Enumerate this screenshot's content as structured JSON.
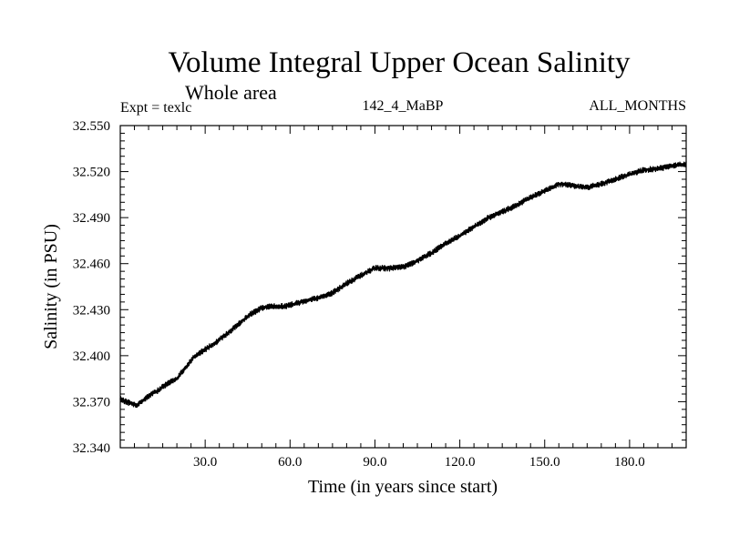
{
  "chart_data": {
    "type": "line",
    "title": "Volume Integral Upper Ocean Salinity",
    "subtitle": "Whole area",
    "annotations": {
      "left": "Expt = texlc",
      "center": "142_4_MaBP",
      "right": "ALL_MONTHS"
    },
    "xlabel": "Time (in years since start)",
    "ylabel": "Salinity (in PSU)",
    "xlim": [
      0,
      200
    ],
    "ylim": [
      32.34,
      32.55
    ],
    "xticks": [
      30,
      60,
      90,
      120,
      150,
      180
    ],
    "xtick_labels": [
      "30.0",
      "60.0",
      "90.0",
      "120.0",
      "150.0",
      "180.0"
    ],
    "xminor_step": 5,
    "yticks": [
      32.34,
      32.37,
      32.4,
      32.43,
      32.46,
      32.49,
      32.52,
      32.55
    ],
    "ytick_labels": [
      "32.340",
      "32.370",
      "32.400",
      "32.430",
      "32.460",
      "32.490",
      "32.520",
      "32.550"
    ],
    "yminor_step": 0.005,
    "grid": false,
    "series": [
      {
        "name": "salinity",
        "x": [
          0,
          2,
          4,
          6,
          8,
          10,
          13,
          16,
          20,
          23,
          26,
          30,
          34,
          38,
          42,
          46,
          50,
          54,
          58,
          62,
          66,
          70,
          75,
          80,
          85,
          90,
          95,
          100,
          105,
          110,
          115,
          120,
          125,
          130,
          135,
          140,
          145,
          150,
          155,
          160,
          165,
          170,
          175,
          180,
          185,
          190,
          195,
          200
        ],
        "y": [
          32.372,
          32.37,
          32.369,
          32.368,
          32.371,
          32.374,
          32.377,
          32.381,
          32.385,
          32.392,
          32.399,
          32.404,
          32.409,
          32.415,
          32.421,
          32.427,
          32.431,
          32.432,
          32.432,
          32.434,
          32.436,
          32.438,
          32.441,
          32.447,
          32.452,
          32.457,
          32.457,
          32.458,
          32.462,
          32.467,
          32.473,
          32.478,
          32.484,
          32.49,
          32.494,
          32.498,
          32.503,
          32.507,
          32.512,
          32.511,
          32.51,
          32.512,
          32.515,
          32.518,
          32.521,
          32.522,
          32.524,
          32.525
        ]
      }
    ]
  }
}
